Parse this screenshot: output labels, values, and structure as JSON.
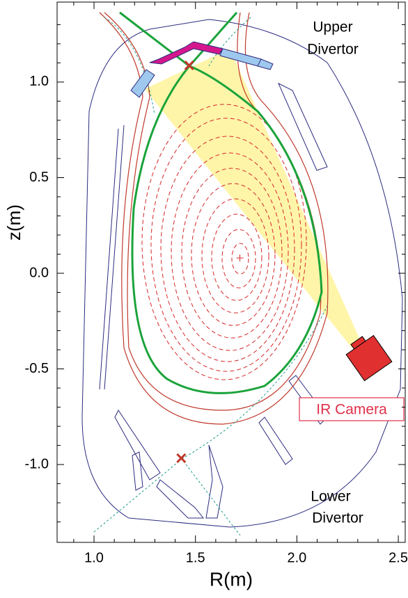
{
  "chart_data": {
    "type": "scatter",
    "x_label": "R(m)",
    "y_label": "z(m)",
    "xlim": [
      0.818,
      2.534
    ],
    "ylim": [
      -1.407,
      1.418
    ],
    "xticks": [
      {
        "value": 1,
        "label": "1.0"
      },
      {
        "value": 1.5,
        "label": "1.5"
      },
      {
        "value": 2,
        "label": "2.0"
      },
      {
        "value": 2.5,
        "label": "2.5"
      }
    ],
    "yticks": [
      {
        "value": -1,
        "label": "-1.0"
      },
      {
        "value": -0.5,
        "label": "-0.5"
      },
      {
        "value": 0,
        "label": "0.0"
      },
      {
        "value": 0.5,
        "label": "0.5"
      },
      {
        "value": 1,
        "label": "1.0"
      }
    ],
    "xminor": [
      0.9,
      1.1,
      1.2,
      1.3,
      1.4,
      1.6,
      1.7,
      1.8,
      1.9,
      2.1,
      2.2,
      2.3,
      2.4
    ],
    "yminor": [
      -1.3,
      -1.2,
      -1.1,
      -0.9,
      -0.8,
      -0.7,
      -0.6,
      -0.4,
      -0.3,
      -0.2,
      -0.1,
      0.1,
      0.2,
      0.3,
      0.4,
      0.6,
      0.7,
      0.8,
      0.9,
      1.1,
      1.2,
      1.3
    ],
    "x_points": {
      "color": "#c0392b",
      "x": [
        1.469,
        1.43
      ],
      "y": [
        1.087,
        -0.967
      ]
    },
    "magnetic_axis": {
      "color": "#d62728",
      "x": [
        1.719
      ],
      "y": [
        0.08
      ]
    },
    "annotations": [
      "Upper",
      "Divertor",
      "Lower",
      "Divertor",
      "IR Camera"
    ]
  }
}
